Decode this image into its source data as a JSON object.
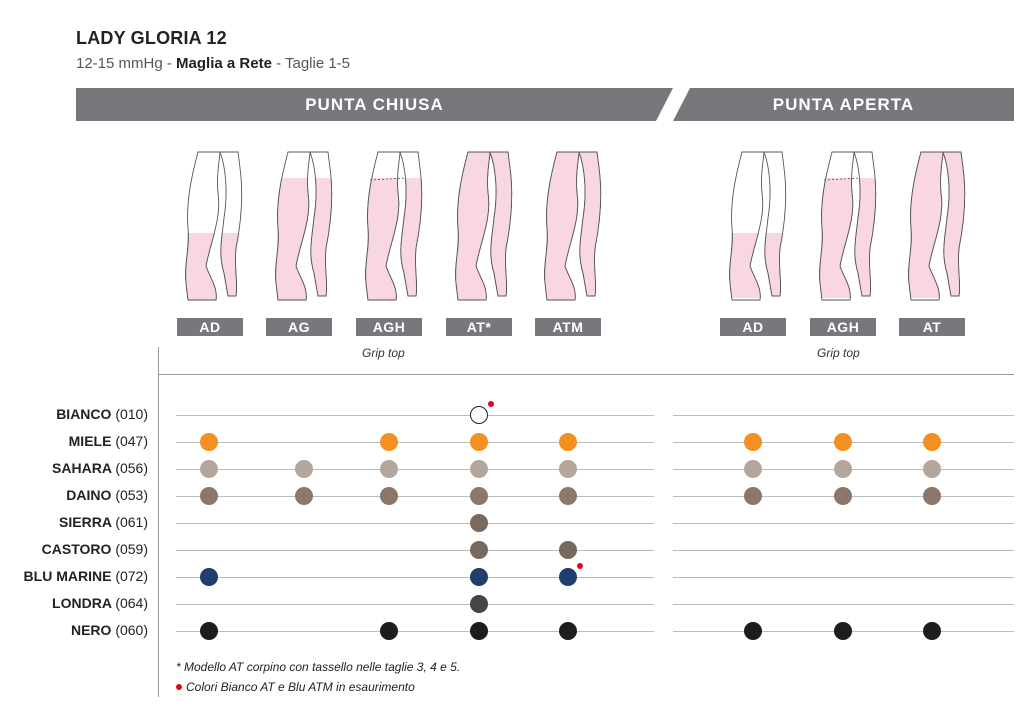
{
  "title": "LADY GLORIA 12",
  "subtitle": {
    "pressure": "12-15 mmHg",
    "sep1": " - ",
    "mesh": "Maglia a Rete",
    "sep2": " - ",
    "sizes": "Taglie 1-5"
  },
  "banners": {
    "closed": "PUNTA CHIUSA",
    "open": "PUNTA APERTA"
  },
  "models_closed": [
    "AD",
    "AG",
    "AGH",
    "AT*",
    "ATM"
  ],
  "models_open": [
    "AD",
    "AGH",
    "AT"
  ],
  "grip_label": "Grip top",
  "colors": [
    {
      "name": "BIANCO",
      "code": "(010)"
    },
    {
      "name": "MIELE",
      "code": "(047)"
    },
    {
      "name": "SAHARA",
      "code": "(056)"
    },
    {
      "name": "DAINO",
      "code": "(053)"
    },
    {
      "name": "SIERRA",
      "code": "(061)"
    },
    {
      "name": "CASTORO",
      "code": "(059)"
    },
    {
      "name": "BLU MARINE",
      "code": "(072)"
    },
    {
      "name": "LONDRA",
      "code": "(064)"
    },
    {
      "name": "NERO",
      "code": "(060)"
    }
  ],
  "swatch_hex": {
    "BIANCO": "#ffffff",
    "MIELE": "#f39021",
    "SAHARA": "#b5a69c",
    "DAINO": "#8c776b",
    "SIERRA": "#7a6a5d",
    "CASTORO": "#77695e",
    "BLU MARINE": "#203e6b",
    "LONDRA": "#444549",
    "NERO": "#1d1d1b",
    "accent_red": "#e30613",
    "banner_gray": "#77787b",
    "leg_pink": "#f8d6e3"
  },
  "availability": {
    "BIANCO": {
      "closed": [
        "AT*"
      ],
      "open": []
    },
    "MIELE": {
      "closed": [
        "AD",
        "AGH",
        "AT*",
        "ATM"
      ],
      "open": [
        "AD",
        "AGH",
        "AT"
      ]
    },
    "SAHARA": {
      "closed": [
        "AD",
        "AG",
        "AGH",
        "AT*",
        "ATM"
      ],
      "open": [
        "AD",
        "AGH",
        "AT"
      ]
    },
    "DAINO": {
      "closed": [
        "AD",
        "AG",
        "AGH",
        "AT*",
        "ATM"
      ],
      "open": [
        "AD",
        "AGH",
        "AT"
      ]
    },
    "SIERRA": {
      "closed": [
        "AT*"
      ],
      "open": []
    },
    "CASTORO": {
      "closed": [
        "AT*",
        "ATM"
      ],
      "open": []
    },
    "BLU MARINE": {
      "closed": [
        "AD",
        "AT*",
        "ATM"
      ],
      "open": []
    },
    "LONDRA": {
      "closed": [
        "AT*"
      ],
      "open": []
    },
    "NERO": {
      "closed": [
        "AD",
        "AGH",
        "AT*",
        "ATM"
      ],
      "open": [
        "AD",
        "AGH",
        "AT"
      ]
    }
  },
  "discontinued": [
    {
      "color": "BIANCO",
      "model": "AT*"
    },
    {
      "color": "BLU MARINE",
      "model": "ATM"
    }
  ],
  "notes": {
    "footnote": "* Modello AT corpino con tassello nelle taglie 3, 4 e 5.",
    "discontinued": "Colori Bianco AT e Blu ATM in esaurimento"
  }
}
